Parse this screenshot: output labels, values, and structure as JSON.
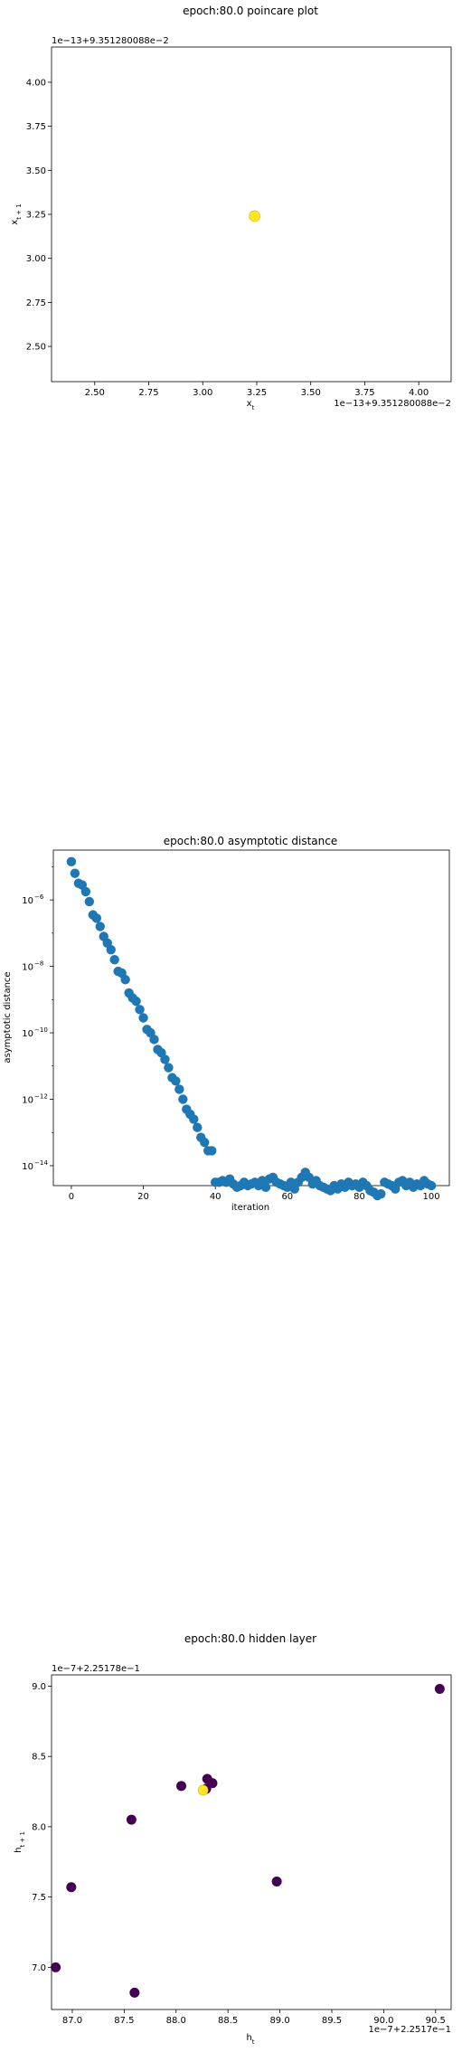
{
  "chart_data": [
    {
      "type": "scatter",
      "title": "epoch:80.0 poincare plot",
      "xlabel": "x_t",
      "ylabel": "x_{t+1}",
      "x_offset_text": "1e−13+9.351280088e−2",
      "y_offset_text": "1e−13+9.351280088e−2",
      "xlim": [
        2.3,
        4.15
      ],
      "ylim": [
        2.3,
        4.2
      ],
      "x_ticks": [
        "2.50",
        "2.75",
        "3.00",
        "3.25",
        "3.50",
        "3.75",
        "4.00"
      ],
      "y_ticks": [
        "2.50",
        "2.75",
        "3.00",
        "3.25",
        "3.50",
        "3.75",
        "4.00"
      ],
      "points": [
        {
          "x": 3.24,
          "y": 3.24,
          "color": "#fde725"
        }
      ]
    },
    {
      "type": "scatter",
      "title": "epoch:80.0 asymptotic distance",
      "xlabel": "iteration",
      "ylabel": "asymptotic distance",
      "y_scale": "log",
      "xlim": [
        -5,
        105
      ],
      "ylim_log10": [
        -14.6,
        -4.5
      ],
      "x_ticks": [
        "0",
        "20",
        "40",
        "60",
        "80",
        "100"
      ],
      "y_ticks": [
        {
          "base": "10",
          "exp": "−6",
          "value": -6
        },
        {
          "base": "10",
          "exp": "−8",
          "value": -8
        },
        {
          "base": "10",
          "exp": "−10",
          "value": -10
        },
        {
          "base": "10",
          "exp": "−12",
          "value": -12
        },
        {
          "base": "10",
          "exp": "−14",
          "value": -14
        }
      ],
      "color": "#1f77b4",
      "log10_values": [
        -4.85,
        -5.2,
        -5.5,
        -5.55,
        -5.75,
        -6.05,
        -6.45,
        -6.55,
        -6.8,
        -7.1,
        -7.3,
        -7.5,
        -7.8,
        -8.15,
        -8.2,
        -8.4,
        -8.8,
        -8.95,
        -9.05,
        -9.3,
        -9.55,
        -9.9,
        -10.0,
        -10.2,
        -10.5,
        -10.6,
        -10.8,
        -11.05,
        -11.35,
        -11.45,
        -11.7,
        -12.0,
        -12.3,
        -12.45,
        -12.6,
        -12.85,
        -13.15,
        -13.3,
        -13.55,
        -13.55,
        -14.5,
        -14.5,
        -14.45,
        -14.5,
        -14.4,
        -14.55,
        -14.65,
        -14.6,
        -14.5,
        -14.6,
        -14.55,
        -14.5,
        -14.6,
        -14.45,
        -14.65,
        -14.4,
        -14.35,
        -14.5,
        -14.55,
        -14.6,
        -14.65,
        -14.5,
        -14.7,
        -14.5,
        -14.35,
        -14.2,
        -14.35,
        -14.55,
        -14.45,
        -14.6,
        -14.65,
        -14.7,
        -14.75,
        -14.6,
        -14.7,
        -14.55,
        -14.65,
        -14.5,
        -14.6,
        -14.55,
        -14.65,
        -14.5,
        -14.6,
        -14.75,
        -14.8,
        -14.9,
        -14.85,
        -14.5,
        -14.55,
        -14.6,
        -14.7,
        -14.5,
        -14.45,
        -14.6,
        -14.5,
        -14.65,
        -14.55,
        -14.6,
        -14.45,
        -14.55,
        -14.6
      ]
    },
    {
      "type": "scatter",
      "title": "epoch:80.0 hidden layer",
      "xlabel": "h_t",
      "ylabel": "h_{t+1}",
      "x_offset_text": "1e−7+2.2517e−1",
      "y_offset_text": "1e−7+2.25178e−1",
      "xlim": [
        86.8,
        90.65
      ],
      "ylim": [
        6.7,
        9.08
      ],
      "x_ticks": [
        "87.0",
        "87.5",
        "88.0",
        "88.5",
        "89.0",
        "89.5",
        "90.0",
        "90.5"
      ],
      "y_ticks": [
        "7.0",
        "7.5",
        "8.0",
        "8.5",
        "9.0"
      ],
      "points": [
        {
          "x": 90.54,
          "y": 8.98,
          "color": "#440154"
        },
        {
          "x": 86.84,
          "y": 7.0,
          "color": "#440154"
        },
        {
          "x": 86.99,
          "y": 7.57,
          "color": "#440154"
        },
        {
          "x": 87.6,
          "y": 6.82,
          "color": "#440154"
        },
        {
          "x": 87.57,
          "y": 8.05,
          "color": "#440154"
        },
        {
          "x": 88.05,
          "y": 8.29,
          "color": "#440154"
        },
        {
          "x": 88.97,
          "y": 7.61,
          "color": "#440154"
        },
        {
          "x": 88.3,
          "y": 8.34,
          "color": "#440154"
        },
        {
          "x": 88.35,
          "y": 8.31,
          "color": "#440154"
        },
        {
          "x": 88.29,
          "y": 8.27,
          "color": "#440154"
        },
        {
          "x": 88.26,
          "y": 8.26,
          "color": "#fde725"
        }
      ]
    }
  ]
}
